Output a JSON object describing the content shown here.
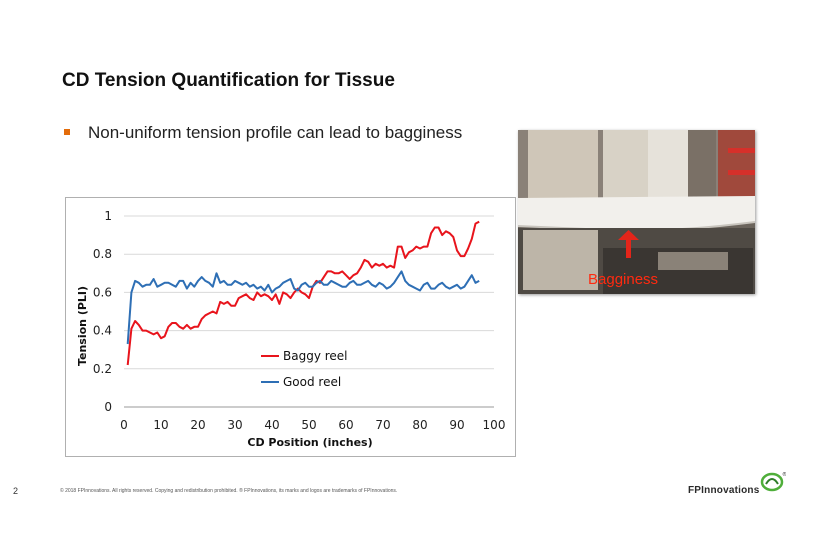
{
  "slide": {
    "title": "CD Tension Quantification for Tissue",
    "bullet": "Non-uniform tension profile can lead to bagginess",
    "page_number": "2",
    "footer": "© 2018 FPInnovations. All rights reserved. Copying and redistribution prohibited. ® FPInnovations, its marks and logos are trademarks of FPInnovations.",
    "brand": "FPInnovations",
    "accent_color": "#e36c0a"
  },
  "photo": {
    "caption": "Bagginess",
    "caption_color": "#ff2a10"
  },
  "chart_data": {
    "type": "line",
    "xlabel": "CD Position (inches)",
    "ylabel": "Tension (PLI)",
    "xlim": [
      0,
      100
    ],
    "ylim": [
      0,
      1
    ],
    "xticks": [
      "0",
      "10",
      "20",
      "30",
      "40",
      "50",
      "60",
      "70",
      "80",
      "90",
      "100"
    ],
    "yticks": [
      "0",
      "0.2",
      "0.4",
      "0.6",
      "0.8",
      "1"
    ],
    "grid": "horizontal",
    "legend_position": "inside-bottom-right",
    "series": [
      {
        "name": "Baggy reel",
        "color": "#e8141c",
        "x": [
          1,
          2,
          3,
          4,
          5,
          6,
          7,
          8,
          9,
          10,
          11,
          12,
          13,
          14,
          15,
          16,
          17,
          18,
          19,
          20,
          21,
          22,
          23,
          24,
          25,
          26,
          27,
          28,
          29,
          30,
          31,
          32,
          33,
          34,
          35,
          36,
          37,
          38,
          39,
          40,
          41,
          42,
          43,
          44,
          45,
          46,
          47,
          48,
          49,
          50,
          51,
          52,
          53,
          54,
          55,
          56,
          57,
          58,
          59,
          60,
          61,
          62,
          63,
          64,
          65,
          66,
          67,
          68,
          69,
          70,
          71,
          72,
          73,
          74,
          75,
          76,
          77,
          78,
          79,
          80,
          81,
          82,
          83,
          84,
          85,
          86,
          87,
          88,
          89,
          90,
          91,
          92,
          93,
          94,
          95,
          96
        ],
        "y": [
          0.22,
          0.41,
          0.45,
          0.43,
          0.4,
          0.4,
          0.39,
          0.38,
          0.39,
          0.36,
          0.37,
          0.42,
          0.44,
          0.44,
          0.42,
          0.41,
          0.43,
          0.41,
          0.42,
          0.42,
          0.46,
          0.48,
          0.49,
          0.5,
          0.49,
          0.55,
          0.54,
          0.55,
          0.53,
          0.53,
          0.57,
          0.58,
          0.59,
          0.57,
          0.56,
          0.6,
          0.58,
          0.59,
          0.58,
          0.56,
          0.59,
          0.54,
          0.6,
          0.59,
          0.57,
          0.6,
          0.62,
          0.6,
          0.59,
          0.57,
          0.63,
          0.66,
          0.65,
          0.68,
          0.71,
          0.71,
          0.7,
          0.7,
          0.71,
          0.69,
          0.67,
          0.69,
          0.7,
          0.73,
          0.77,
          0.76,
          0.73,
          0.75,
          0.74,
          0.75,
          0.73,
          0.74,
          0.73,
          0.84,
          0.84,
          0.78,
          0.81,
          0.82,
          0.84,
          0.83,
          0.84,
          0.84,
          0.91,
          0.94,
          0.94,
          0.9,
          0.92,
          0.91,
          0.89,
          0.82,
          0.79,
          0.79,
          0.83,
          0.88,
          0.96,
          0.97
        ]
      },
      {
        "name": "Good reel",
        "color": "#2e6fb5",
        "x": [
          1,
          2,
          3,
          4,
          5,
          6,
          7,
          8,
          9,
          10,
          11,
          12,
          13,
          14,
          15,
          16,
          17,
          18,
          19,
          20,
          21,
          22,
          23,
          24,
          25,
          26,
          27,
          28,
          29,
          30,
          31,
          32,
          33,
          34,
          35,
          36,
          37,
          38,
          39,
          40,
          41,
          42,
          43,
          44,
          45,
          46,
          47,
          48,
          49,
          50,
          51,
          52,
          53,
          54,
          55,
          56,
          57,
          58,
          59,
          60,
          61,
          62,
          63,
          64,
          65,
          66,
          67,
          68,
          69,
          70,
          71,
          72,
          73,
          74,
          75,
          76,
          77,
          78,
          79,
          80,
          81,
          82,
          83,
          84,
          85,
          86,
          87,
          88,
          89,
          90,
          91,
          92,
          93,
          94,
          95,
          96
        ],
        "y": [
          0.33,
          0.6,
          0.66,
          0.65,
          0.63,
          0.64,
          0.64,
          0.67,
          0.63,
          0.64,
          0.65,
          0.65,
          0.64,
          0.63,
          0.66,
          0.66,
          0.62,
          0.65,
          0.63,
          0.66,
          0.68,
          0.66,
          0.65,
          0.63,
          0.7,
          0.65,
          0.66,
          0.64,
          0.64,
          0.66,
          0.65,
          0.64,
          0.65,
          0.63,
          0.64,
          0.62,
          0.63,
          0.61,
          0.64,
          0.6,
          0.62,
          0.63,
          0.65,
          0.66,
          0.67,
          0.62,
          0.61,
          0.64,
          0.65,
          0.63,
          0.63,
          0.65,
          0.66,
          0.64,
          0.64,
          0.66,
          0.65,
          0.64,
          0.63,
          0.63,
          0.65,
          0.66,
          0.64,
          0.64,
          0.65,
          0.66,
          0.64,
          0.63,
          0.65,
          0.64,
          0.62,
          0.63,
          0.65,
          0.68,
          0.71,
          0.66,
          0.64,
          0.63,
          0.62,
          0.61,
          0.64,
          0.65,
          0.62,
          0.62,
          0.64,
          0.65,
          0.63,
          0.62,
          0.63,
          0.64,
          0.62,
          0.63,
          0.66,
          0.69,
          0.65,
          0.66
        ]
      }
    ]
  }
}
